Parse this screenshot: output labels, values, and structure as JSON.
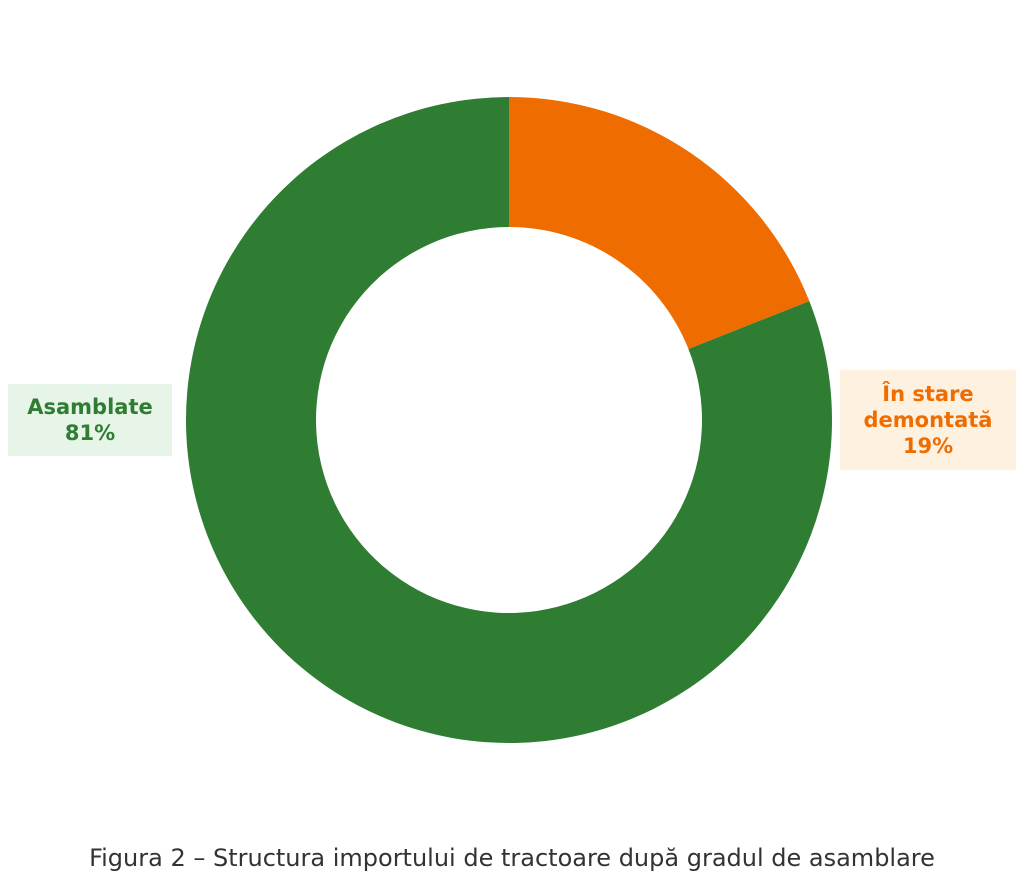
{
  "chart_data": {
    "type": "pie",
    "variant": "donut",
    "start": "top",
    "direction": "clockwise",
    "slices": [
      {
        "label": "În stare demontată",
        "label_lines": [
          "În stare",
          "demontată"
        ],
        "value": 19,
        "value_text": "19%",
        "color": "#ef6c00",
        "label_bg": "#fff1e0"
      },
      {
        "label": "Asamblate",
        "label_lines": [
          "Asamblate"
        ],
        "value": 81,
        "value_text": "81%",
        "color": "#2e7d32",
        "label_bg": "#e7f4e8"
      }
    ]
  },
  "caption": "Figura 2 – Structura importului de tractoare după gradul de asamblare"
}
